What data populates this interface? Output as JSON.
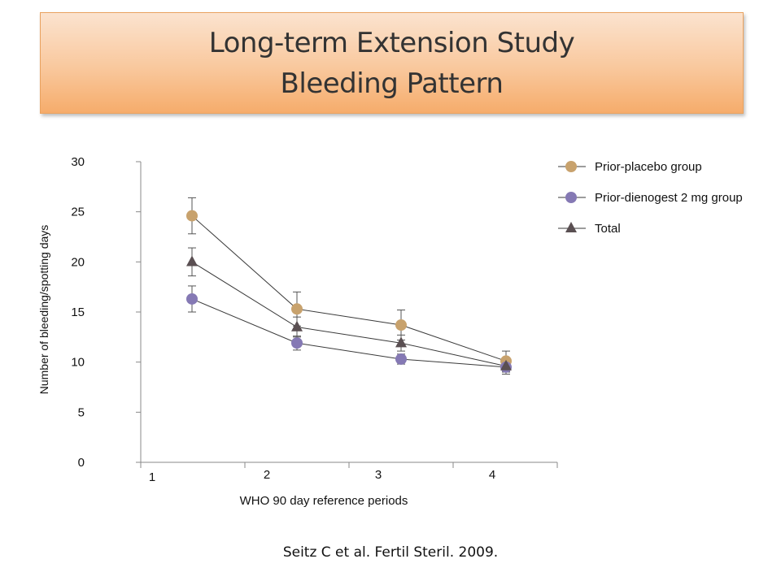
{
  "slide": {
    "title_line1": "Long-term Extension Study",
    "title_line2": "Bleeding Pattern",
    "citation": "Seitz C et al. Fertil Steril. 2009."
  },
  "chart_data": {
    "type": "line",
    "xlabel": "WHO 90 day reference periods",
    "ylabel": "Number of bleeding/spotting days",
    "categories": [
      "1",
      "2",
      "3",
      "4"
    ],
    "ylim": [
      0,
      30
    ],
    "yticks": [
      0,
      5,
      10,
      15,
      20,
      25,
      30
    ],
    "grid": false,
    "legend_position": "top-right",
    "series": [
      {
        "name": "Prior-placebo group",
        "marker": "circle",
        "color": "#c8a26d",
        "values": [
          24.6,
          15.3,
          13.7,
          10.1
        ],
        "error": [
          1.8,
          1.7,
          1.5,
          1.0
        ]
      },
      {
        "name": "Prior-dienogest 2 mg group",
        "marker": "circle",
        "color": "#8579b4",
        "values": [
          16.3,
          11.9,
          10.3,
          9.5
        ],
        "error": [
          1.3,
          0.7,
          0.5,
          0.5
        ]
      },
      {
        "name": "Total",
        "marker": "triangle",
        "color": "#5a4f52",
        "values": [
          20.0,
          13.5,
          11.9,
          9.6
        ],
        "error": [
          1.4,
          1.0,
          0.8,
          0.8
        ]
      }
    ]
  }
}
